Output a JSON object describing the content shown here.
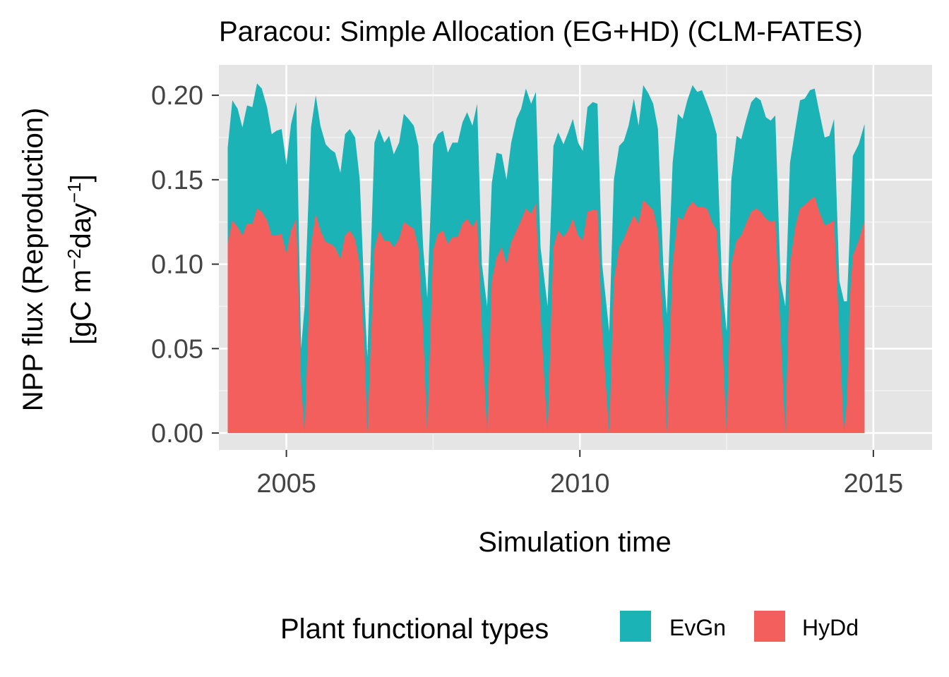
{
  "chart_data": {
    "type": "area",
    "stacked": true,
    "title": "Paracou: Simple Allocation (EG+HD) (CLM-FATES)",
    "xlabel": "Simulation time",
    "ylabel_line1": "NPP flux (Reproduction)",
    "ylabel_pre": "[gC m",
    "ylabel_sup1": "−2",
    "ylabel_mid": "day",
    "ylabel_sup2": "−1",
    "ylabel_post": "]",
    "xlim": [
      2003.85,
      2016.0
    ],
    "ylim": [
      -0.01,
      0.218
    ],
    "x_ticks": [
      2005,
      2010,
      2015
    ],
    "x_tick_labels": [
      "2005",
      "2010",
      "2015"
    ],
    "y_ticks": [
      0.0,
      0.05,
      0.1,
      0.15,
      0.2
    ],
    "y_tick_labels": [
      "0.00",
      "0.05",
      "0.10",
      "0.15",
      "0.20"
    ],
    "legend_title": "Plant functional types",
    "legend_position": "bottom",
    "series": [
      {
        "name": "HyDd",
        "color": "#F25F5C",
        "points": [
          [
            2004.0,
            0.112
          ],
          [
            2004.08,
            0.126
          ],
          [
            2004.17,
            0.122
          ],
          [
            2004.25,
            0.117
          ],
          [
            2004.33,
            0.124
          ],
          [
            2004.42,
            0.124
          ],
          [
            2004.5,
            0.133
          ],
          [
            2004.58,
            0.131
          ],
          [
            2004.67,
            0.126
          ],
          [
            2004.75,
            0.117
          ],
          [
            2004.83,
            0.117
          ],
          [
            2004.92,
            0.118
          ],
          [
            2005.0,
            0.106
          ],
          [
            2005.08,
            0.12
          ],
          [
            2005.17,
            0.127
          ],
          [
            2005.25,
            0.03
          ],
          [
            2005.31,
            0.0
          ],
          [
            2005.42,
            0.111
          ],
          [
            2005.5,
            0.13
          ],
          [
            2005.58,
            0.12
          ],
          [
            2005.67,
            0.113
          ],
          [
            2005.75,
            0.112
          ],
          [
            2005.83,
            0.11
          ],
          [
            2005.92,
            0.103
          ],
          [
            2006.0,
            0.117
          ],
          [
            2006.08,
            0.12
          ],
          [
            2006.17,
            0.115
          ],
          [
            2006.25,
            0.1
          ],
          [
            2006.33,
            0.05
          ],
          [
            2006.38,
            0.0
          ],
          [
            2006.5,
            0.109
          ],
          [
            2006.58,
            0.12
          ],
          [
            2006.67,
            0.114
          ],
          [
            2006.75,
            0.114
          ],
          [
            2006.83,
            0.11
          ],
          [
            2006.92,
            0.115
          ],
          [
            2007.0,
            0.125
          ],
          [
            2007.08,
            0.123
          ],
          [
            2007.17,
            0.121
          ],
          [
            2007.25,
            0.11
          ],
          [
            2007.33,
            0.06
          ],
          [
            2007.4,
            0.0
          ],
          [
            2007.5,
            0.108
          ],
          [
            2007.58,
            0.118
          ],
          [
            2007.67,
            0.12
          ],
          [
            2007.75,
            0.112
          ],
          [
            2007.83,
            0.116
          ],
          [
            2007.92,
            0.116
          ],
          [
            2008.0,
            0.124
          ],
          [
            2008.08,
            0.127
          ],
          [
            2008.17,
            0.122
          ],
          [
            2008.25,
            0.127
          ],
          [
            2008.33,
            0.06
          ],
          [
            2008.42,
            0.0
          ],
          [
            2008.5,
            0.09
          ],
          [
            2008.58,
            0.104
          ],
          [
            2008.67,
            0.11
          ],
          [
            2008.75,
            0.1
          ],
          [
            2008.83,
            0.113
          ],
          [
            2008.92,
            0.12
          ],
          [
            2009.0,
            0.126
          ],
          [
            2009.08,
            0.133
          ],
          [
            2009.17,
            0.13
          ],
          [
            2009.25,
            0.136
          ],
          [
            2009.33,
            0.07
          ],
          [
            2009.45,
            0.0
          ],
          [
            2009.55,
            0.11
          ],
          [
            2009.63,
            0.12
          ],
          [
            2009.72,
            0.116
          ],
          [
            2009.8,
            0.12
          ],
          [
            2009.88,
            0.127
          ],
          [
            2009.97,
            0.117
          ],
          [
            2010.05,
            0.114
          ],
          [
            2010.13,
            0.131
          ],
          [
            2010.22,
            0.132
          ],
          [
            2010.3,
            0.132
          ],
          [
            2010.38,
            0.06
          ],
          [
            2010.5,
            0.0
          ],
          [
            2010.58,
            0.09
          ],
          [
            2010.67,
            0.11
          ],
          [
            2010.75,
            0.115
          ],
          [
            2010.83,
            0.122
          ],
          [
            2010.92,
            0.129
          ],
          [
            2011.0,
            0.124
          ],
          [
            2011.08,
            0.138
          ],
          [
            2011.17,
            0.135
          ],
          [
            2011.25,
            0.132
          ],
          [
            2011.33,
            0.12
          ],
          [
            2011.42,
            0.06
          ],
          [
            2011.48,
            0.0
          ],
          [
            2011.58,
            0.1
          ],
          [
            2011.67,
            0.128
          ],
          [
            2011.75,
            0.126
          ],
          [
            2011.83,
            0.133
          ],
          [
            2011.92,
            0.137
          ],
          [
            2012.0,
            0.134
          ],
          [
            2012.08,
            0.134
          ],
          [
            2012.17,
            0.133
          ],
          [
            2012.25,
            0.125
          ],
          [
            2012.33,
            0.12
          ],
          [
            2012.42,
            0.06
          ],
          [
            2012.5,
            0.0
          ],
          [
            2012.58,
            0.1
          ],
          [
            2012.67,
            0.114
          ],
          [
            2012.75,
            0.117
          ],
          [
            2012.83,
            0.124
          ],
          [
            2012.92,
            0.131
          ],
          [
            2013.0,
            0.133
          ],
          [
            2013.08,
            0.131
          ],
          [
            2013.17,
            0.127
          ],
          [
            2013.25,
            0.125
          ],
          [
            2013.33,
            0.126
          ],
          [
            2013.42,
            0.06
          ],
          [
            2013.5,
            0.0
          ],
          [
            2013.58,
            0.1
          ],
          [
            2013.67,
            0.122
          ],
          [
            2013.75,
            0.133
          ],
          [
            2013.83,
            0.135
          ],
          [
            2013.92,
            0.138
          ],
          [
            2014.0,
            0.14
          ],
          [
            2014.08,
            0.131
          ],
          [
            2014.17,
            0.123
          ],
          [
            2014.25,
            0.124
          ],
          [
            2014.33,
            0.126
          ],
          [
            2014.42,
            0.06
          ],
          [
            2014.5,
            0.0
          ],
          [
            2014.55,
            0.02
          ],
          [
            2014.6,
            0.08
          ],
          [
            2014.65,
            0.105
          ],
          [
            2014.75,
            0.114
          ],
          [
            2014.85,
            0.126
          ]
        ]
      },
      {
        "name": "EvGn",
        "color": "#1CB3B6",
        "points": [
          [
            2004.0,
            0.169
          ],
          [
            2004.08,
            0.197
          ],
          [
            2004.17,
            0.192
          ],
          [
            2004.25,
            0.181
          ],
          [
            2004.33,
            0.194
          ],
          [
            2004.42,
            0.193
          ],
          [
            2004.5,
            0.207
          ],
          [
            2004.58,
            0.204
          ],
          [
            2004.67,
            0.193
          ],
          [
            2004.75,
            0.177
          ],
          [
            2004.83,
            0.179
          ],
          [
            2004.92,
            0.18
          ],
          [
            2005.0,
            0.159
          ],
          [
            2005.08,
            0.183
          ],
          [
            2005.17,
            0.196
          ],
          [
            2005.25,
            0.05
          ],
          [
            2005.31,
            0.075
          ],
          [
            2005.42,
            0.181
          ],
          [
            2005.5,
            0.2
          ],
          [
            2005.58,
            0.182
          ],
          [
            2005.67,
            0.171
          ],
          [
            2005.75,
            0.168
          ],
          [
            2005.83,
            0.166
          ],
          [
            2005.92,
            0.154
          ],
          [
            2006.0,
            0.177
          ],
          [
            2006.08,
            0.18
          ],
          [
            2006.17,
            0.175
          ],
          [
            2006.25,
            0.15
          ],
          [
            2006.33,
            0.08
          ],
          [
            2006.38,
            0.045
          ],
          [
            2006.5,
            0.172
          ],
          [
            2006.58,
            0.18
          ],
          [
            2006.67,
            0.172
          ],
          [
            2006.75,
            0.176
          ],
          [
            2006.83,
            0.165
          ],
          [
            2006.92,
            0.172
          ],
          [
            2007.0,
            0.189
          ],
          [
            2007.08,
            0.186
          ],
          [
            2007.17,
            0.182
          ],
          [
            2007.25,
            0.17
          ],
          [
            2007.33,
            0.11
          ],
          [
            2007.4,
            0.08
          ],
          [
            2007.5,
            0.171
          ],
          [
            2007.58,
            0.177
          ],
          [
            2007.67,
            0.179
          ],
          [
            2007.75,
            0.166
          ],
          [
            2007.83,
            0.172
          ],
          [
            2007.92,
            0.172
          ],
          [
            2008.0,
            0.184
          ],
          [
            2008.08,
            0.19
          ],
          [
            2008.17,
            0.182
          ],
          [
            2008.25,
            0.195
          ],
          [
            2008.33,
            0.1
          ],
          [
            2008.42,
            0.075
          ],
          [
            2008.5,
            0.148
          ],
          [
            2008.58,
            0.166
          ],
          [
            2008.67,
            0.165
          ],
          [
            2008.75,
            0.15
          ],
          [
            2008.83,
            0.172
          ],
          [
            2008.92,
            0.186
          ],
          [
            2009.0,
            0.192
          ],
          [
            2009.08,
            0.204
          ],
          [
            2009.17,
            0.195
          ],
          [
            2009.25,
            0.202
          ],
          [
            2009.33,
            0.11
          ],
          [
            2009.45,
            0.075
          ],
          [
            2009.55,
            0.17
          ],
          [
            2009.63,
            0.178
          ],
          [
            2009.72,
            0.171
          ],
          [
            2009.8,
            0.178
          ],
          [
            2009.88,
            0.186
          ],
          [
            2009.97,
            0.172
          ],
          [
            2010.05,
            0.167
          ],
          [
            2010.13,
            0.193
          ],
          [
            2010.22,
            0.196
          ],
          [
            2010.3,
            0.195
          ],
          [
            2010.38,
            0.1
          ],
          [
            2010.5,
            0.06
          ],
          [
            2010.58,
            0.15
          ],
          [
            2010.67,
            0.17
          ],
          [
            2010.75,
            0.173
          ],
          [
            2010.83,
            0.182
          ],
          [
            2010.92,
            0.198
          ],
          [
            2011.0,
            0.182
          ],
          [
            2011.08,
            0.206
          ],
          [
            2011.17,
            0.201
          ],
          [
            2011.25,
            0.195
          ],
          [
            2011.33,
            0.18
          ],
          [
            2011.42,
            0.1
          ],
          [
            2011.48,
            0.07
          ],
          [
            2011.58,
            0.16
          ],
          [
            2011.67,
            0.189
          ],
          [
            2011.75,
            0.186
          ],
          [
            2011.83,
            0.197
          ],
          [
            2011.92,
            0.206
          ],
          [
            2012.0,
            0.202
          ],
          [
            2012.08,
            0.203
          ],
          [
            2012.17,
            0.195
          ],
          [
            2012.25,
            0.187
          ],
          [
            2012.33,
            0.177
          ],
          [
            2012.42,
            0.09
          ],
          [
            2012.5,
            0.06
          ],
          [
            2012.58,
            0.15
          ],
          [
            2012.67,
            0.176
          ],
          [
            2012.75,
            0.174
          ],
          [
            2012.83,
            0.185
          ],
          [
            2012.92,
            0.196
          ],
          [
            2013.0,
            0.199
          ],
          [
            2013.08,
            0.197
          ],
          [
            2013.17,
            0.187
          ],
          [
            2013.25,
            0.185
          ],
          [
            2013.33,
            0.188
          ],
          [
            2013.42,
            0.09
          ],
          [
            2013.5,
            0.075
          ],
          [
            2013.58,
            0.16
          ],
          [
            2013.67,
            0.18
          ],
          [
            2013.75,
            0.197
          ],
          [
            2013.83,
            0.198
          ],
          [
            2013.92,
            0.203
          ],
          [
            2014.0,
            0.204
          ],
          [
            2014.08,
            0.19
          ],
          [
            2014.17,
            0.175
          ],
          [
            2014.25,
            0.176
          ],
          [
            2014.33,
            0.186
          ],
          [
            2014.42,
            0.09
          ],
          [
            2014.5,
            0.078
          ],
          [
            2014.55,
            0.078
          ],
          [
            2014.6,
            0.12
          ],
          [
            2014.65,
            0.164
          ],
          [
            2014.75,
            0.171
          ],
          [
            2014.85,
            0.183
          ]
        ]
      }
    ]
  }
}
